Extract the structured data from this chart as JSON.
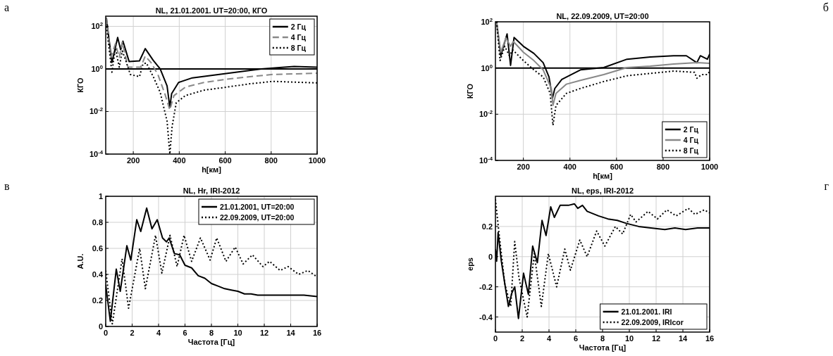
{
  "chart_data": [
    {
      "type": "line",
      "title": "NL, 21.01.2001. UT=20:00, КГО",
      "xlabel": "h[км]",
      "ylabel": "КГО",
      "annotations": [
        "а"
      ],
      "log": "y",
      "grid": true,
      "legend": "top right",
      "xlim": [
        80,
        1000
      ],
      "xticks": [
        200,
        400,
        600,
        800,
        1000
      ],
      "ylim": [
        0.0001,
        300
      ],
      "yticks": [
        {
          "value": 0.0001,
          "label": "10$^{-4}$"
        },
        {
          "value": 0.01,
          "label": "10$^{-2}$"
        },
        {
          "value": 1,
          "label": "10$^{0}$"
        },
        {
          "value": 100,
          "label": "10$^{2}$"
        }
      ],
      "ref_lines": [
        {
          "axis": "y",
          "value": 1,
          "color": "#000000"
        }
      ],
      "series": [
        {
          "name": "2 Гц",
          "color": "#000000",
          "line_style": "solid",
          "x": [
            83,
            107,
            132,
            145,
            155,
            182,
            227,
            252,
            287,
            317,
            347,
            359,
            367,
            397,
            457,
            557,
            657,
            757,
            857,
            900,
            1000
          ],
          "values": [
            250,
            2,
            30,
            8,
            20,
            2.2,
            2.4,
            9,
            2.5,
            1,
            0.16,
            0.016,
            0.07,
            0.23,
            0.38,
            0.52,
            0.72,
            1,
            1.2,
            1.3,
            1.2
          ]
        },
        {
          "name": "4 Гц",
          "color": "#888888",
          "line_style": "dashed",
          "x": [
            83,
            102,
            122,
            139,
            152,
            177,
            232,
            252,
            277,
            307,
            337,
            359,
            377,
            427,
            507,
            607,
            707,
            807,
            1000
          ],
          "values": [
            250,
            3.3,
            15,
            3.5,
            18,
            1.2,
            1.2,
            4,
            2,
            0.55,
            0.07,
            0.012,
            0.056,
            0.14,
            0.23,
            0.33,
            0.43,
            0.55,
            0.63
          ]
        },
        {
          "name": "8 Гц",
          "color": "#000000",
          "line_style": "dotted",
          "x": [
            83,
            107,
            122,
            139,
            152,
            167,
            187,
            227,
            242,
            257,
            287,
            317,
            347,
            359,
            369,
            387,
            427,
            507,
            607,
            707,
            807,
            1000
          ],
          "values": [
            100,
            0.7,
            9,
            1.2,
            7,
            2.5,
            0.55,
            0.43,
            1.7,
            1.9,
            0.43,
            0.08,
            0.0035,
            0.0001,
            0.002,
            0.026,
            0.056,
            0.1,
            0.14,
            0.2,
            0.26,
            0.22
          ]
        }
      ]
    },
    {
      "type": "line",
      "title": "NL, 22.09.2009, UT=20:00",
      "xlabel": "h[км]",
      "ylabel": "КГО",
      "annotations": [
        "б"
      ],
      "log": "y",
      "grid": true,
      "legend": "bottom right",
      "xlim": [
        80,
        1000
      ],
      "xticks": [
        200,
        400,
        600,
        800,
        1000
      ],
      "ylim": [
        0.0001,
        100
      ],
      "yticks": [
        {
          "value": 0.0001,
          "label": "10$^{-4}$"
        },
        {
          "value": 0.01,
          "label": "10$^{-2}$"
        },
        {
          "value": 1,
          "label": "10$^{0}$"
        },
        {
          "value": 100,
          "label": "10$^{2}$"
        }
      ],
      "ref_lines": [
        {
          "axis": "y",
          "value": 1,
          "color": "#000000"
        }
      ],
      "series": [
        {
          "name": "2 Гц",
          "color": "#000000",
          "line_style": "solid",
          "x": [
            85,
            103,
            130,
            145,
            160,
            200,
            245,
            285,
            310,
            325,
            335,
            365,
            445,
            545,
            645,
            745,
            845,
            900,
            945,
            960,
            990,
            1000
          ],
          "values": [
            100,
            3.4,
            30,
            1.3,
            21,
            8.7,
            4.3,
            1.7,
            0.41,
            0.05,
            0.13,
            0.32,
            0.83,
            1.05,
            2.4,
            3,
            3.4,
            3.4,
            1.7,
            3.4,
            2.4,
            4
          ]
        },
        {
          "name": "4 Гц",
          "color": "#888888",
          "line_style": "solid",
          "x": [
            85,
            103,
            125,
            145,
            157,
            200,
            245,
            285,
            320,
            327,
            340,
            385,
            445,
            545,
            645,
            745,
            845,
            945,
            1000
          ],
          "values": [
            100,
            4.8,
            20,
            8.7,
            14,
            4.8,
            2.1,
            0.83,
            0.13,
            0.024,
            0.08,
            0.2,
            0.29,
            0.52,
            1.05,
            1.2,
            1.5,
            1.7,
            1.6
          ]
        },
        {
          "name": "8 Гц",
          "color": "#000000",
          "line_style": "dotted",
          "x": [
            85,
            100,
            120,
            140,
            155,
            200,
            245,
            285,
            315,
            327,
            340,
            385,
            445,
            545,
            645,
            745,
            845,
            935,
            945,
            965,
            990,
            1000
          ],
          "values": [
            100,
            2.1,
            8.7,
            3.4,
            6,
            2.1,
            0.83,
            0.41,
            0.08,
            0.0033,
            0.024,
            0.08,
            0.13,
            0.26,
            0.46,
            0.58,
            0.74,
            0.65,
            0.36,
            0.52,
            0.52,
            0.7
          ]
        }
      ]
    },
    {
      "type": "line",
      "title": "NL, Hr,  IRI-2012",
      "xlabel": "Частота [Гц]",
      "ylabel": "A.U.",
      "annotations": [
        "в"
      ],
      "grid": true,
      "legend": "top right",
      "xlim": [
        0,
        16
      ],
      "xticks": [
        0,
        2,
        4,
        6,
        8,
        10,
        12,
        14,
        16
      ],
      "ylim": [
        0,
        1
      ],
      "yticks": [
        0,
        0.2,
        0.4,
        0.6,
        0.8,
        1
      ],
      "series": [
        {
          "name": "21.01.2001, UT=20:00",
          "color": "#000000",
          "line_style": "solid",
          "x": [
            0,
            0.35,
            0.8,
            1.1,
            1.6,
            1.9,
            2.35,
            2.65,
            3.1,
            3.5,
            3.9,
            4.3,
            4.6,
            4.8,
            5.2,
            5.6,
            6,
            6.5,
            7,
            7.5,
            8,
            8.5,
            9,
            9.5,
            10,
            10.5,
            11,
            11.5,
            12,
            13,
            14,
            15,
            16
          ],
          "values": [
            0.32,
            0.04,
            0.44,
            0.27,
            0.62,
            0.51,
            0.82,
            0.73,
            0.91,
            0.75,
            0.82,
            0.68,
            0.65,
            0.68,
            0.56,
            0.55,
            0.47,
            0.45,
            0.39,
            0.37,
            0.33,
            0.31,
            0.29,
            0.28,
            0.27,
            0.25,
            0.25,
            0.24,
            0.24,
            0.24,
            0.24,
            0.24,
            0.23
          ]
        },
        {
          "name": "22.09.2009, UT=20:00",
          "color": "#000000",
          "line_style": "dotted",
          "x": [
            0,
            0.5,
            1.24,
            1.73,
            2.57,
            3,
            3.77,
            4.25,
            4.87,
            5.4,
            5.93,
            6.5,
            7.17,
            7.9,
            8.4,
            9.1,
            9.8,
            10.4,
            11.1,
            11.9,
            12.4,
            13.2,
            13.8,
            14.6,
            15.3,
            16
          ],
          "values": [
            0.43,
            0.02,
            0.52,
            0.14,
            0.6,
            0.29,
            0.7,
            0.41,
            0.7,
            0.46,
            0.7,
            0.5,
            0.68,
            0.51,
            0.68,
            0.5,
            0.61,
            0.48,
            0.55,
            0.46,
            0.5,
            0.43,
            0.46,
            0.4,
            0.43,
            0.38
          ]
        }
      ]
    },
    {
      "type": "line",
      "title": "NL,  eps, IRI-2012",
      "xlabel": "Частота [Гц]",
      "ylabel": "eps",
      "annotations": [
        "г"
      ],
      "grid": true,
      "legend": "bottom right",
      "xlim": [
        0,
        16
      ],
      "xticks": [
        0,
        2,
        4,
        6,
        8,
        10,
        12,
        14,
        16
      ],
      "ylim": [
        -0.5,
        0.4
      ],
      "yticks": [
        -0.4,
        -0.2,
        0,
        0.2
      ],
      "series": [
        {
          "name": "21.01.2001. IRI",
          "color": "#000000",
          "line_style": "solid",
          "x": [
            0,
            0.09,
            0.2,
            0.44,
            0.7,
            0.97,
            1.23,
            1.44,
            1.72,
            2.1,
            2.46,
            2.78,
            3.13,
            3.48,
            3.78,
            4.13,
            4.4,
            4.83,
            5.45,
            5.9,
            6.15,
            6.5,
            6.85,
            7.7,
            8.4,
            9.1,
            9.8,
            10.7,
            11.6,
            12.65,
            13.4,
            14.2,
            15.1,
            16
          ],
          "values": [
            0.05,
            -0.03,
            0.16,
            -0.03,
            -0.18,
            -0.33,
            -0.24,
            -0.2,
            -0.41,
            -0.11,
            -0.25,
            0.07,
            -0.04,
            0.24,
            0.14,
            0.33,
            0.26,
            0.34,
            0.34,
            0.35,
            0.32,
            0.34,
            0.3,
            0.27,
            0.25,
            0.24,
            0.22,
            0.2,
            0.19,
            0.18,
            0.19,
            0.18,
            0.19,
            0.19
          ]
        },
        {
          "name": "22.09.2009, IRIcor",
          "color": "#000000",
          "line_style": "dotted",
          "x": [
            0,
            0.26,
            0.7,
            1.14,
            1.44,
            1.76,
            2.37,
            2.9,
            3.43,
            3.95,
            4.57,
            5.18,
            5.6,
            6.3,
            6.85,
            7.56,
            8.17,
            8.96,
            9.5,
            10.1,
            10.5,
            11.4,
            12.1,
            12.8,
            13.5,
            14.4,
            14.9,
            15.6,
            16
          ],
          "values": [
            0.38,
            0.16,
            -0.18,
            -0.33,
            0.1,
            -0.14,
            -0.4,
            0.02,
            -0.33,
            0.02,
            -0.2,
            0.05,
            -0.09,
            0.11,
            0,
            0.17,
            0.07,
            0.2,
            0.15,
            0.28,
            0.23,
            0.3,
            0.25,
            0.31,
            0.27,
            0.32,
            0.28,
            0.31,
            0.29
          ]
        }
      ]
    }
  ]
}
